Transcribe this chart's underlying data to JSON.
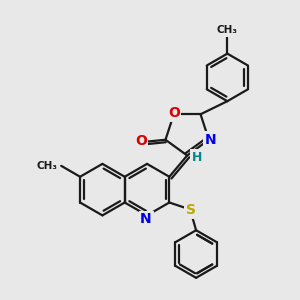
{
  "background_color": "#e8e8e8",
  "bond_color": "#1a1a1a",
  "atom_colors": {
    "N": "#0000ee",
    "O": "#dd0000",
    "S": "#bbaa00",
    "H": "#008888",
    "C": "#1a1a1a"
  },
  "figsize": [
    3.0,
    3.0
  ],
  "dpi": 100
}
